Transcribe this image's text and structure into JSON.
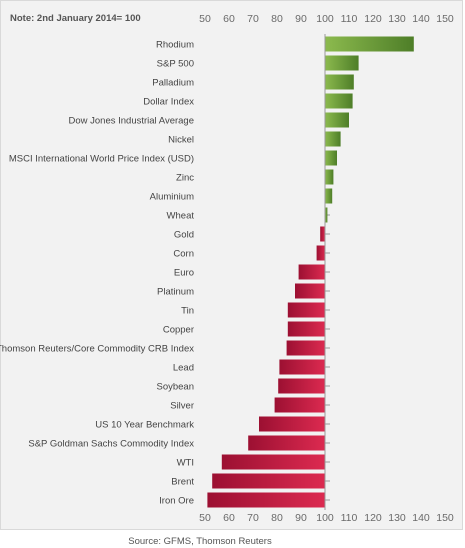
{
  "note": "Note: 2nd January 2014= 100",
  "source": "Source: GFMS, Thomson Reuters",
  "colors": {
    "positive": "#6a9a38",
    "negative": "#c0143c",
    "axis": "#999999"
  },
  "chart_data": {
    "type": "bar",
    "orientation": "horizontal",
    "baseline": 100,
    "xlim": [
      50,
      150
    ],
    "xticks": [
      50,
      60,
      70,
      80,
      90,
      100,
      110,
      120,
      130,
      140,
      150
    ],
    "x_axis_position": "top and bottom",
    "grid": false,
    "categories": [
      "Rhodium",
      "S&P 500",
      "Palladium",
      "Dollar Index",
      "Dow Jones Industrial Average",
      "Nickel",
      "MSCI International World Price Index (USD)",
      "Zinc",
      "Aluminium",
      "Wheat",
      "Gold",
      "Corn",
      "Euro",
      "Platinum",
      "Tin",
      "Copper",
      "Thomson Reuters/Core Commodity CRB Index",
      "Lead",
      "Soybean",
      "Silver",
      "US 10 Year Benchmark",
      "S&P Goldman Sachs Commodity Index",
      "WTI",
      "Brent",
      "Iron Ore"
    ],
    "values": [
      137,
      114,
      112,
      111.5,
      110,
      106.5,
      105,
      103.5,
      103,
      101,
      98,
      96.5,
      89,
      87.5,
      84.5,
      84.5,
      84,
      81,
      80.5,
      79,
      72.5,
      68,
      57,
      53,
      51
    ]
  }
}
